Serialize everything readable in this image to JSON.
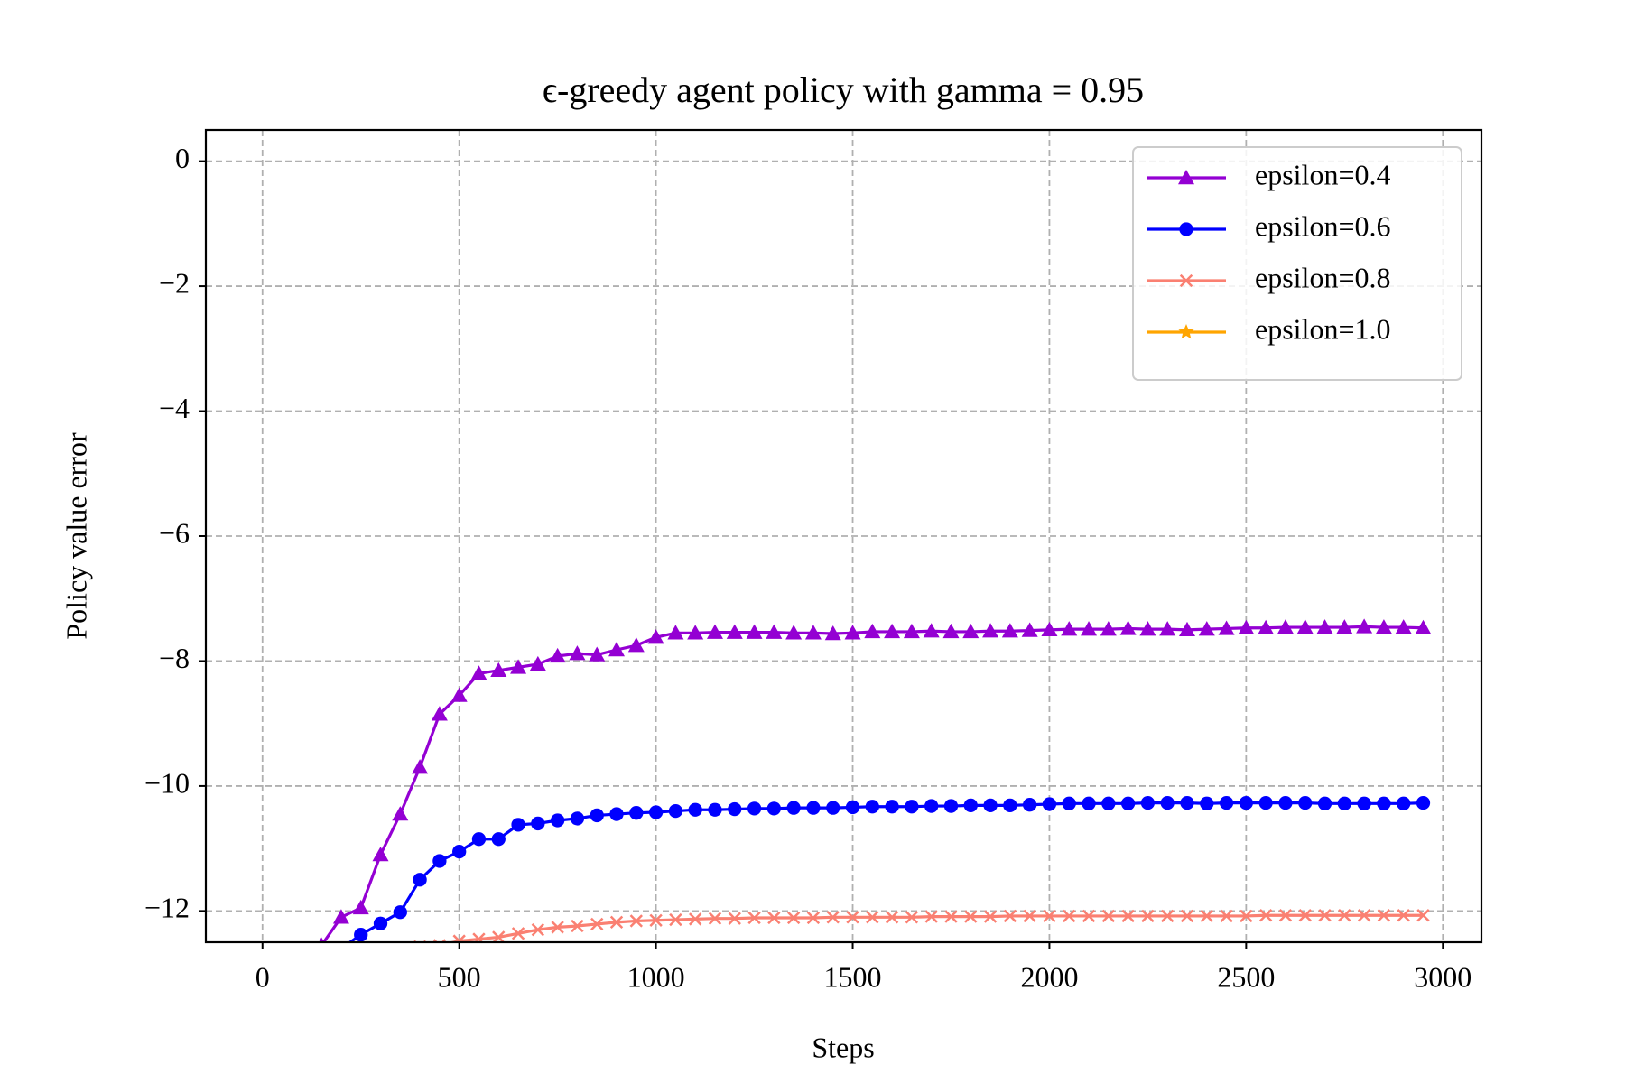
{
  "chart_data": {
    "type": "line",
    "title": "ϵ-greedy agent policy with gamma = 0.95",
    "xlabel": "Steps",
    "ylabel": "Policy value error",
    "x": [
      0,
      50,
      100,
      150,
      200,
      250,
      300,
      350,
      400,
      450,
      500,
      550,
      600,
      650,
      700,
      750,
      800,
      850,
      900,
      950,
      1000,
      1050,
      1100,
      1150,
      1200,
      1250,
      1300,
      1350,
      1400,
      1450,
      1500,
      1550,
      1600,
      1650,
      1700,
      1750,
      1800,
      1850,
      1900,
      1950,
      2000,
      2050,
      2100,
      2150,
      2200,
      2250,
      2300,
      2350,
      2400,
      2450,
      2500,
      2550,
      2600,
      2650,
      2700,
      2750,
      2800,
      2850,
      2900,
      2950
    ],
    "series": [
      {
        "name": "epsilon=0.4",
        "color": "#9400d3",
        "marker": "triangle",
        "values": [
          null,
          null,
          null,
          -12.55,
          -12.1,
          -11.95,
          -11.1,
          -10.45,
          -9.7,
          -8.85,
          -8.55,
          -8.2,
          -8.15,
          -8.1,
          -8.05,
          -7.92,
          -7.88,
          -7.9,
          -7.82,
          -7.75,
          -7.62,
          -7.55,
          -7.55,
          -7.54,
          -7.54,
          -7.54,
          -7.54,
          -7.55,
          -7.55,
          -7.56,
          -7.55,
          -7.53,
          -7.53,
          -7.53,
          -7.52,
          -7.53,
          -7.53,
          -7.52,
          -7.52,
          -7.51,
          -7.5,
          -7.49,
          -7.49,
          -7.49,
          -7.48,
          -7.49,
          -7.49,
          -7.5,
          -7.49,
          -7.48,
          -7.47,
          -7.47,
          -7.46,
          -7.46,
          -7.46,
          -7.46,
          -7.45,
          -7.46,
          -7.46,
          -7.47
        ]
      },
      {
        "name": "epsilon=0.6",
        "color": "#0000ff",
        "marker": "circle",
        "values": [
          null,
          null,
          null,
          null,
          -12.6,
          -12.38,
          -12.2,
          -12.02,
          -11.5,
          -11.2,
          -11.05,
          -10.85,
          -10.85,
          -10.62,
          -10.6,
          -10.55,
          -10.52,
          -10.47,
          -10.45,
          -10.43,
          -10.42,
          -10.4,
          -10.38,
          -10.38,
          -10.37,
          -10.36,
          -10.36,
          -10.35,
          -10.35,
          -10.35,
          -10.34,
          -10.33,
          -10.33,
          -10.33,
          -10.32,
          -10.32,
          -10.31,
          -10.31,
          -10.31,
          -10.3,
          -10.29,
          -10.28,
          -10.28,
          -10.28,
          -10.28,
          -10.27,
          -10.27,
          -10.27,
          -10.28,
          -10.27,
          -10.27,
          -10.27,
          -10.27,
          -10.27,
          -10.28,
          -10.28,
          -10.28,
          -10.28,
          -10.28,
          -10.27
        ]
      },
      {
        "name": "epsilon=0.8",
        "color": "#fa8072",
        "marker": "x",
        "values": [
          null,
          null,
          null,
          null,
          null,
          null,
          null,
          null,
          -12.57,
          -12.55,
          -12.48,
          -12.45,
          -12.42,
          -12.36,
          -12.3,
          -12.26,
          -12.24,
          -12.21,
          -12.18,
          -12.16,
          -12.15,
          -12.14,
          -12.13,
          -12.12,
          -12.12,
          -12.11,
          -12.11,
          -12.11,
          -12.11,
          -12.1,
          -12.1,
          -12.1,
          -12.1,
          -12.1,
          -12.09,
          -12.09,
          -12.09,
          -12.09,
          -12.08,
          -12.08,
          -12.08,
          -12.08,
          -12.08,
          -12.08,
          -12.08,
          -12.08,
          -12.08,
          -12.08,
          -12.08,
          -12.08,
          -12.08,
          -12.07,
          -12.07,
          -12.07,
          -12.07,
          -12.07,
          -12.07,
          -12.07,
          -12.07,
          -12.07
        ]
      },
      {
        "name": "epsilon=1.0",
        "color": "#ffa500",
        "marker": "star",
        "values": [
          null,
          null,
          null,
          null,
          null,
          null,
          null,
          null,
          null,
          null,
          null,
          null,
          null,
          null,
          null,
          null,
          null,
          null,
          null,
          null,
          null,
          null,
          null,
          null,
          null,
          null,
          null,
          null,
          null,
          null,
          null,
          null,
          null,
          null,
          null,
          null,
          null,
          null,
          null,
          null,
          null,
          null,
          null,
          null,
          null,
          null,
          null,
          null,
          null,
          null,
          null,
          null,
          null,
          null,
          null,
          null,
          null,
          null,
          null,
          null
        ]
      }
    ],
    "xlim": [
      -144,
      3098
    ],
    "xticks": [
      0,
      500,
      1000,
      1500,
      2000,
      2500,
      3000
    ],
    "ylim": [
      -12.5,
      0.5
    ],
    "yticks": [
      0,
      {
        "value": -2,
        "label": "−2"
      },
      {
        "value": -4,
        "label": "−4"
      },
      {
        "value": -6,
        "label": "−6"
      },
      {
        "value": -8,
        "label": "−8"
      },
      {
        "value": -10,
        "label": "−10"
      },
      {
        "value": -12,
        "label": "−12"
      }
    ],
    "grid": true,
    "legend": "upper right"
  }
}
